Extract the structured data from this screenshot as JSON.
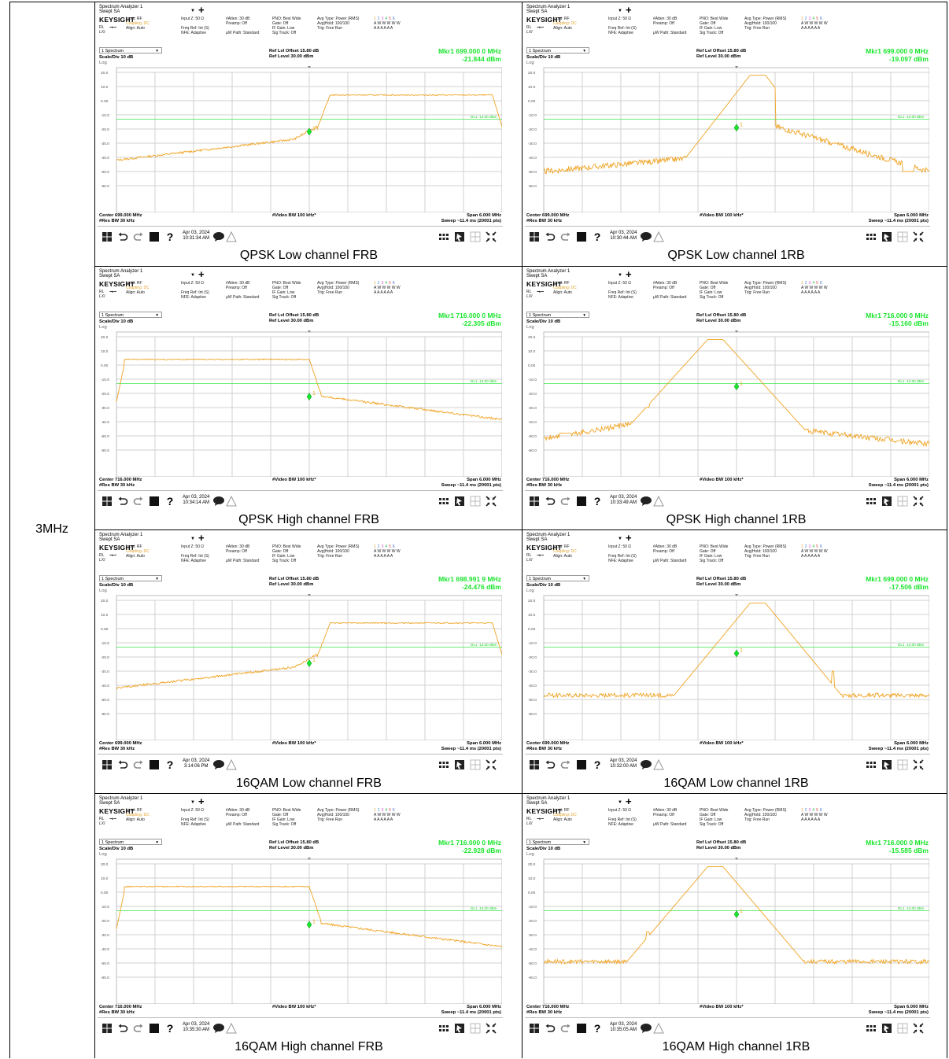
{
  "bandwidth_label": "3MHz",
  "common": {
    "window_title": "Spectrum Analyzer 1",
    "window_subtitle": "Swept SA",
    "brand": "KEYSIGHT",
    "input_line1": "Input: RF",
    "input_line2": "Coupling: DC",
    "input_line3": "Align: Auto",
    "col2_line1": "Input Z: 50 Ω",
    "col2_line2": "Freq Ref: Int (S)",
    "col2_line3": "NFE: Adaptive",
    "col3_line1": "#Atten: 30 dB",
    "col3_line2": "Preamp: Off",
    "col3_line3": "µW Path: Standard",
    "col4_line1": "PNO: Best Wide",
    "col4_line2": "Gate: Off",
    "col4_line3": "IF Gain: Low",
    "col4_line4": "Sig Track: Off",
    "col5_line1": "Avg Type: Power (RMS)",
    "col5_line2": "Avg|Hold: 100/100",
    "col5_line3": "Trig: Free Run",
    "trace_digits": [
      "1",
      "2",
      "3",
      "4",
      "5",
      "6"
    ],
    "trace_w": "A W W W W W",
    "trace_a": "A A A A A A",
    "spectrum_selector": "1 Spectrum",
    "ref_offset": "Ref Lvl Offset 15.80 dB",
    "ref_level": "Ref Level 30.00 dBm",
    "scale_div": "Scale/Div 10 dB",
    "log": "Log",
    "y_ticks": [
      "20.0",
      "10.0",
      "0.00",
      "-10.0",
      "-20.0",
      "-30.0",
      "-40.0",
      "-50.0",
      "-60.0"
    ],
    "display_line_label": "DL1 -13.00 dBm",
    "res_bw": "#Res BW 30 kHz",
    "video_bw": "#Video BW 100 kHz*",
    "span": "Span 6.000 MHz",
    "sweep": "Sweep ~11.4 ms (20001 pts)",
    "icons": [
      "windows-start-icon",
      "undo-icon",
      "redo-icon",
      "display-icon",
      "help-icon",
      "chat-icon",
      "grid-icon",
      "screenshot-icon",
      "layout-icon",
      "fullscreen-icon"
    ],
    "line_color": "#f0a424",
    "marker_color": "#19e52c",
    "marker_label": "1"
  },
  "plots": [
    {
      "caption": "QPSK Low channel FRB",
      "mkr_label": "Mkr1  699.000 0 MHz",
      "mkr_value": "-21.844 dBm",
      "center": "Center 699.000 MHz",
      "date": "Apr 03, 2024",
      "time": "10:31:34 AM",
      "shape": "frb-low",
      "marker_db": -21.844
    },
    {
      "caption": "QPSK Low channel 1RB",
      "mkr_label": "Mkr1  699.000 0 MHz",
      "mkr_value": "-19.097 dBm",
      "center": "Center 699.000 MHz",
      "date": "Apr 03, 2024",
      "time": "10:30:44 AM",
      "shape": "1rb-low",
      "marker_db": -19.097
    },
    {
      "caption": "QPSK High channel FRB",
      "mkr_label": "Mkr1  716.000 0 MHz",
      "mkr_value": "-22.305 dBm",
      "center": "Center 716.000 MHz",
      "date": "Apr 03, 2024",
      "time": "10:34:14 AM",
      "shape": "frb-high",
      "marker_db": -22.305
    },
    {
      "caption": "QPSK High channel 1RB",
      "mkr_label": "Mkr1  716.000 0 MHz",
      "mkr_value": "-15.160 dBm",
      "center": "Center 716.000 MHz",
      "date": "Apr 03, 2024",
      "time": "10:33:49 AM",
      "shape": "1rb-high",
      "marker_db": -15.16
    },
    {
      "caption": "16QAM Low channel FRB",
      "mkr_label": "Mkr1  698.991 9 MHz",
      "mkr_value": "-24.476 dBm",
      "center": "Center 699.000 MHz",
      "date": "Apr 03, 2024",
      "time": "3:14:06 PM",
      "shape": "frb-low",
      "marker_db": -24.476
    },
    {
      "caption": "16QAM Low channel 1RB",
      "mkr_label": "Mkr1  699.000 0 MHz",
      "mkr_value": "-17.506 dBm",
      "center": "Center 699.000 MHz",
      "date": "Apr 03, 2024",
      "time": "10:32:00 AM",
      "shape": "1rb-low2",
      "marker_db": -17.506
    },
    {
      "caption": "16QAM High channel FRB",
      "mkr_label": "Mkr1  716.000 0 MHz",
      "mkr_value": "-22.928 dBm",
      "center": "Center 716.000 MHz",
      "date": "Apr 03, 2024",
      "time": "10:35:30 AM",
      "shape": "frb-high",
      "marker_db": -22.928
    },
    {
      "caption": "16QAM High channel 1RB",
      "mkr_label": "Mkr1  716.000 0 MHz",
      "mkr_value": "-15.585 dBm",
      "center": "Center 716.000 MHz",
      "date": "Apr 03, 2024",
      "time": "10:35:05 AM",
      "shape": "1rb-high2",
      "marker_db": -15.585
    }
  ]
}
